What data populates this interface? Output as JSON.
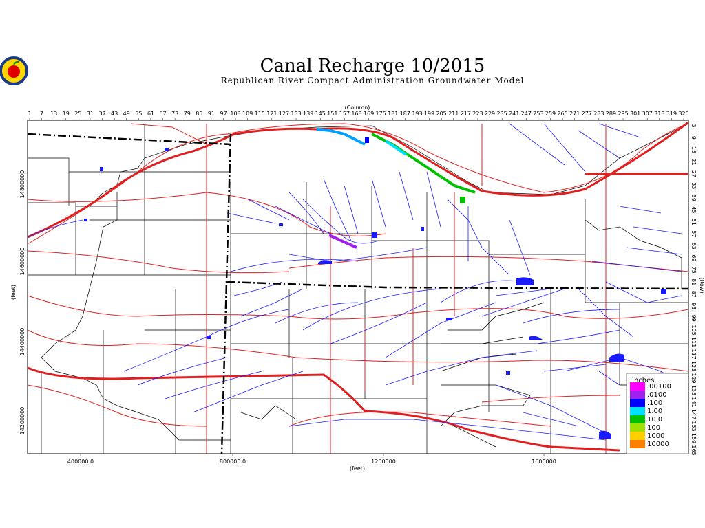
{
  "header": {
    "title": "Canal Recharge 10/2015",
    "subtitle": "Republican River Compact Administration Groundwater Model"
  },
  "axes": {
    "column_title": "(Column)",
    "row_title": "(Row)",
    "x_title": "(feet)",
    "y_title": "(feet)",
    "columns": [
      1,
      7,
      13,
      19,
      25,
      31,
      37,
      43,
      49,
      55,
      61,
      67,
      73,
      79,
      85,
      91,
      97,
      103,
      109,
      115,
      121,
      127,
      133,
      139,
      145,
      151,
      157,
      163,
      169,
      175,
      181,
      187,
      193,
      199,
      205,
      211,
      217,
      223,
      229,
      235,
      241,
      247,
      253,
      259,
      265,
      271,
      277,
      283,
      289,
      295,
      301,
      307,
      313,
      319,
      325
    ],
    "rows": [
      3,
      9,
      15,
      21,
      27,
      33,
      39,
      45,
      51,
      57,
      63,
      69,
      75,
      81,
      87,
      93,
      99,
      105,
      111,
      117,
      123,
      129,
      135,
      141,
      147,
      153,
      159,
      165
    ],
    "x_labels": [
      "400000.0",
      "800000.0",
      "1200000",
      "1600000"
    ],
    "y_labels": [
      "14800000",
      "14600000",
      "14400000",
      "14200000"
    ]
  },
  "legend": {
    "title": "Inches",
    "entries": [
      {
        "label": ".00100",
        "color": "#ff00ff"
      },
      {
        "label": ".0100",
        "color": "#a020f0"
      },
      {
        "label": ".100",
        "color": "#0000ff"
      },
      {
        "label": "1.00",
        "color": "#00e0ff"
      },
      {
        "label": "10.0",
        "color": "#00c000"
      },
      {
        "label": "100",
        "color": "#a0e000"
      },
      {
        "label": "1000",
        "color": "#ffd000"
      },
      {
        "label": "10000",
        "color": "#ff8000"
      }
    ]
  }
}
